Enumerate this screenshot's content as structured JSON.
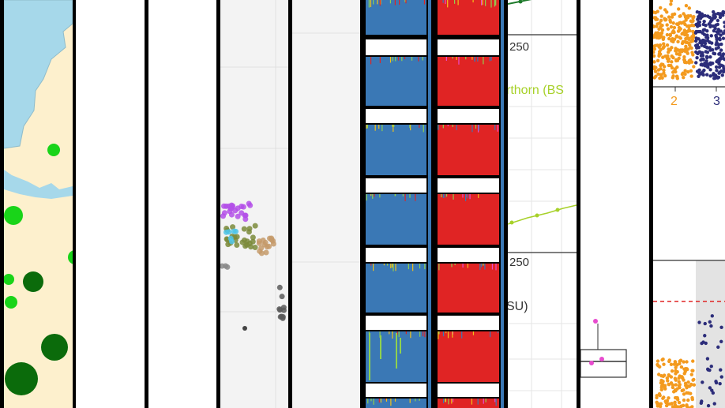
{
  "panels": [
    {
      "name": "map-panel",
      "kind": "map"
    },
    {
      "name": "blank-panel-1",
      "kind": "blank"
    },
    {
      "name": "blank-panel-2",
      "kind": "blank"
    },
    {
      "name": "scatter-panel",
      "kind": "scatter"
    },
    {
      "name": "blank-panel-3",
      "kind": "blank"
    },
    {
      "name": "structure-blue-panel",
      "kind": "structure-bars",
      "color": "#3a78b5"
    },
    {
      "name": "structure-red-panel",
      "kind": "structure-bars",
      "color": "#e02424"
    },
    {
      "name": "line-chart-panel",
      "kind": "line-chart"
    },
    {
      "name": "boxplot-panel",
      "kind": "boxplot"
    },
    {
      "name": "manhattan-panel",
      "kind": "manhattan"
    }
  ],
  "line_chart": {
    "tick_top": "250",
    "tick_bottom": "250",
    "series_label_fragment": "rthorn (BS",
    "axis_label_fragment": "SU)",
    "series_color": "#a7d129",
    "upper_series_color": "#1d7a2a"
  },
  "manhattan": {
    "tick_2": "2",
    "tick_3": "3",
    "color_chr2": "#f39a1e",
    "color_chr3": "#2c2d7a",
    "threshold_color": "#e02424"
  },
  "map": {
    "water_color": "#a6d8ea",
    "land_color": "#fdf0cd",
    "marker_light": "#19d419",
    "marker_dark": "#0b6b0b"
  }
}
